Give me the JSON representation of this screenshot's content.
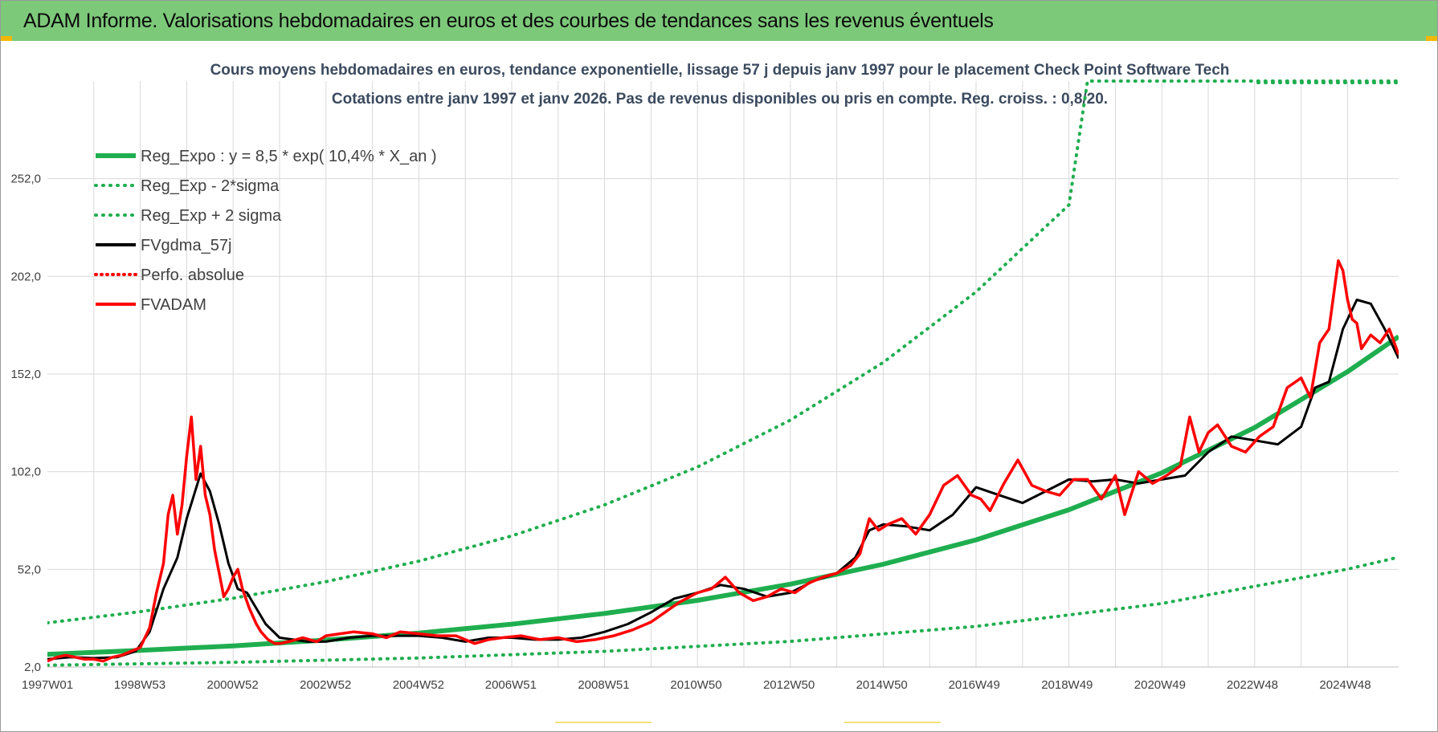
{
  "banner": {
    "title": "ADAM Informe. Valorisations hebdomadaires en euros et des courbes de tendances sans les revenus éventuels"
  },
  "colors": {
    "banner_bg": "#7dc97a",
    "reg_green": "#1fae4f",
    "red": "#ff0000",
    "black": "#000000",
    "grid": "#d9d9d9",
    "axis_text": "#404040",
    "title_text": "#3b4a5e"
  },
  "chart_data": {
    "type": "line",
    "title_line1": "Cours moyens hebdomadaires en euros, tendance exponentielle, lissage 57 j depuis janv 1997  pour le placement Check Point Software Tech",
    "title_line2": "Cotations entre janv 1997 et janv 2026. Pas de revenus disponibles ou pris en compte. Reg. croiss. : 0,8/20.",
    "xlabel": "",
    "ylabel": "",
    "x_range": [
      1997.0,
      2026.1
    ],
    "ylim": [
      2,
      302
    ],
    "y_ticks": [
      2,
      52,
      102,
      152,
      202,
      252
    ],
    "y_tick_labels": [
      "2,0",
      "52,0",
      "102,0",
      "152,0",
      "202,0",
      "252,0"
    ],
    "x_ticks": [
      1997.0,
      1998.99,
      2000.99,
      2002.99,
      2004.99,
      2006.98,
      2008.98,
      2010.97,
      2012.97,
      2014.97,
      2016.96,
      2018.96,
      2020.96,
      2022.95,
      2024.95
    ],
    "x_tick_labels": [
      "1997W01",
      "1998W53",
      "2000W52",
      "2002W52",
      "2004W52",
      "2006W51",
      "2008W51",
      "2010W50",
      "2012W50",
      "2014W50",
      "2016W49",
      "2018W49",
      "2020W49",
      "2022W48",
      "2024W48"
    ],
    "grid": true,
    "legend_position": "top-left",
    "regression": {
      "a": 8.5,
      "growth": 0.104,
      "x0": 1997.0,
      "sigma_factor_low": 0.34,
      "sigma_factor_high": 2.9
    },
    "series": [
      {
        "name": "Reg_Expo : y = 8,5 * exp( 10,4% *  X_an )",
        "style": "reg",
        "x": [
          1997,
          1999,
          2001,
          2003,
          2005,
          2007,
          2009,
          2011,
          2013,
          2015,
          2017,
          2019,
          2021,
          2023,
          2025,
          2026.1
        ],
        "values": [
          8.5,
          10.5,
          12.8,
          15.8,
          19.4,
          23.9,
          29.4,
          36.1,
          44.4,
          54.6,
          67.1,
          82.5,
          101.4,
          124.6,
          153.2,
          171.2
        ]
      },
      {
        "name": "Reg_Exp - 2*sigma",
        "style": "reg_low",
        "x": [
          1997,
          2001,
          2005,
          2009,
          2013,
          2017,
          2021,
          2025,
          2026.1
        ],
        "values": [
          2.9,
          4.4,
          6.6,
          10.0,
          15.1,
          22.8,
          34.5,
          52.1,
          58.2
        ]
      },
      {
        "name": "Reg_Exp + 2 sigma",
        "style": "reg_high",
        "x": [
          1997,
          1999,
          2001,
          2003,
          2005,
          2007,
          2009,
          2011,
          2013,
          2015,
          2017,
          2019,
          2019.4,
          2026.1
        ],
        "values": [
          24.6,
          30.3,
          37.2,
          45.7,
          56.2,
          69.1,
          85.0,
          104.4,
          128.4,
          157.9,
          194.1,
          238.6,
          302,
          302
        ]
      },
      {
        "name": "FVgdma_57j",
        "style": "black",
        "x": [
          1997.0,
          1997.5,
          1998.0,
          1998.5,
          1998.9,
          1999.2,
          1999.5,
          1999.8,
          2000.0,
          2000.3,
          2000.5,
          2000.7,
          2000.9,
          2001.1,
          2001.3,
          2001.5,
          2001.7,
          2002.0,
          2002.3,
          2002.6,
          2003.0,
          2003.5,
          2004.0,
          2004.5,
          2005.0,
          2005.5,
          2006.0,
          2006.5,
          2007.0,
          2007.5,
          2008.0,
          2008.5,
          2009.0,
          2009.5,
          2010.0,
          2010.5,
          2011.0,
          2011.5,
          2012.0,
          2012.5,
          2013.0,
          2013.5,
          2014.0,
          2014.4,
          2014.7,
          2015.0,
          2015.5,
          2016.0,
          2016.5,
          2017.0,
          2017.5,
          2018.0,
          2018.5,
          2019.0,
          2019.5,
          2020.0,
          2020.5,
          2021.0,
          2021.5,
          2022.0,
          2022.5,
          2023.0,
          2023.5,
          2024.0,
          2024.3,
          2024.6,
          2024.9,
          2025.2,
          2025.5,
          2025.8,
          2026.1
        ],
        "values": [
          6,
          7,
          6.5,
          7,
          10,
          20,
          42,
          58,
          78,
          101,
          92,
          75,
          55,
          42,
          40,
          32,
          24,
          17,
          16,
          15,
          15,
          17,
          18,
          18,
          18,
          17,
          15,
          17,
          17,
          16,
          16,
          17,
          20,
          24,
          30,
          37,
          40,
          44,
          42,
          38,
          40,
          46,
          50,
          58,
          72,
          75,
          74,
          72,
          80,
          94,
          90,
          86,
          92,
          98,
          97,
          98,
          96,
          98,
          100,
          112,
          120,
          118,
          116,
          125,
          145,
          148,
          175,
          190,
          188,
          175,
          160
        ]
      },
      {
        "name": "Perfo. absolue",
        "style": "red_dotted",
        "x": [],
        "values": []
      },
      {
        "name": "FVADAM",
        "style": "red",
        "x": [
          1997.0,
          1997.2,
          1997.4,
          1997.6,
          1997.8,
          1998.0,
          1998.2,
          1998.4,
          1998.6,
          1998.8,
          1999.0,
          1999.2,
          1999.35,
          1999.5,
          1999.6,
          1999.7,
          1999.8,
          1999.9,
          2000.0,
          2000.1,
          2000.2,
          2000.3,
          2000.4,
          2000.5,
          2000.6,
          2000.7,
          2000.8,
          2000.9,
          2001.0,
          2001.1,
          2001.2,
          2001.35,
          2001.5,
          2001.6,
          2001.75,
          2001.9,
          2002.0,
          2002.2,
          2002.5,
          2002.8,
          2003.0,
          2003.3,
          2003.6,
          2004.0,
          2004.3,
          2004.6,
          2005.0,
          2005.4,
          2005.8,
          2006.2,
          2006.5,
          2006.8,
          2007.2,
          2007.6,
          2008.0,
          2008.4,
          2008.8,
          2009.2,
          2009.6,
          2010.0,
          2010.3,
          2010.6,
          2011.0,
          2011.3,
          2011.6,
          2011.9,
          2012.2,
          2012.5,
          2012.8,
          2013.1,
          2013.4,
          2013.7,
          2014.0,
          2014.3,
          2014.5,
          2014.7,
          2014.9,
          2015.1,
          2015.4,
          2015.7,
          2016.0,
          2016.3,
          2016.6,
          2016.9,
          2017.1,
          2017.3,
          2017.6,
          2017.9,
          2018.2,
          2018.5,
          2018.8,
          2019.1,
          2019.4,
          2019.7,
          2020.0,
          2020.2,
          2020.5,
          2020.8,
          2021.1,
          2021.4,
          2021.6,
          2021.8,
          2022.0,
          2022.2,
          2022.5,
          2022.8,
          2023.1,
          2023.4,
          2023.7,
          2024.0,
          2024.2,
          2024.4,
          2024.6,
          2024.8,
          2024.9,
          2025.0,
          2025.1,
          2025.2,
          2025.3,
          2025.5,
          2025.7,
          2025.9,
          2026.1
        ],
        "values": [
          5,
          7,
          8,
          7,
          6,
          6,
          5,
          7,
          8,
          10,
          12,
          22,
          40,
          55,
          80,
          90,
          70,
          85,
          110,
          130,
          98,
          115,
          90,
          80,
          62,
          50,
          38,
          42,
          48,
          52,
          42,
          32,
          24,
          20,
          16,
          14,
          14,
          15,
          17,
          15,
          18,
          19,
          20,
          19,
          17,
          20,
          19,
          18,
          18,
          14,
          16,
          17,
          18,
          16,
          17,
          15,
          16,
          18,
          21,
          25,
          30,
          35,
          40,
          42,
          48,
          40,
          36,
          38,
          42,
          40,
          45,
          48,
          50,
          54,
          60,
          78,
          72,
          75,
          78,
          70,
          80,
          95,
          100,
          90,
          88,
          82,
          96,
          108,
          95,
          92,
          90,
          98,
          98,
          88,
          100,
          80,
          102,
          96,
          100,
          105,
          130,
          112,
          122,
          126,
          115,
          112,
          120,
          125,
          145,
          150,
          140,
          168,
          175,
          210,
          205,
          190,
          180,
          178,
          165,
          172,
          168,
          175,
          162
        ]
      }
    ]
  }
}
